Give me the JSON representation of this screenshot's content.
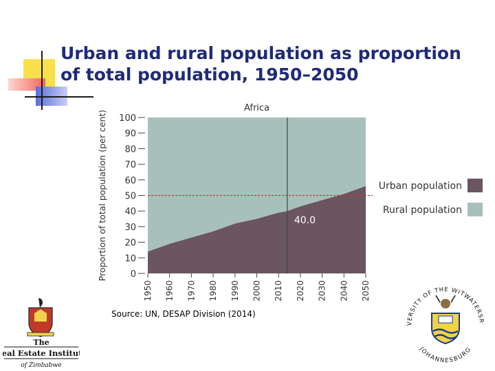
{
  "slide": {
    "title_line1": "Urban and rural population as proportion",
    "title_line2": "of total population, 1950–2050",
    "source": "Source: UN, DESAP Division (2014)"
  },
  "logos": {
    "rei_line1": "The",
    "rei_line2": "Real Estate Institute",
    "rei_line3": "of Zimbabwe",
    "wits_ring": "UNIVERSITY OF THE WITWATERSRAND",
    "wits_city": "JOHANNESBURG"
  },
  "colors": {
    "urban": "#6b5560",
    "rural": "#a8c0bb",
    "title": "#1f2a78",
    "midline": "#c0392b",
    "deco_yellow": "#f7e04b",
    "deco_red": "#f0665a",
    "deco_blue": "#5a6dd8"
  },
  "chart_data": {
    "type": "area",
    "title": "Africa",
    "ylabel": "Proportion of total population (per cent)",
    "xlabel": "",
    "ylim": [
      0,
      100
    ],
    "yticks": [
      0,
      10,
      20,
      30,
      40,
      50,
      60,
      70,
      80,
      90,
      100
    ],
    "xlim": [
      1950,
      2050
    ],
    "xticks": [
      1950,
      1960,
      1970,
      1980,
      1990,
      2000,
      2010,
      2020,
      2030,
      2040,
      2050
    ],
    "reference_line_y": 50,
    "marker_x": 2014,
    "annotation": "40.0",
    "x": [
      1950,
      1960,
      1970,
      1980,
      1990,
      2000,
      2010,
      2014,
      2020,
      2030,
      2040,
      2050
    ],
    "series": [
      {
        "name": "Urban population",
        "values": [
          14,
          19,
          23,
          27,
          32,
          35,
          39,
          40,
          43,
          47,
          51,
          56
        ]
      },
      {
        "name": "Rural population",
        "values": [
          86,
          81,
          77,
          73,
          68,
          65,
          61,
          60,
          57,
          53,
          49,
          44
        ]
      }
    ],
    "legend_placement": "right"
  }
}
